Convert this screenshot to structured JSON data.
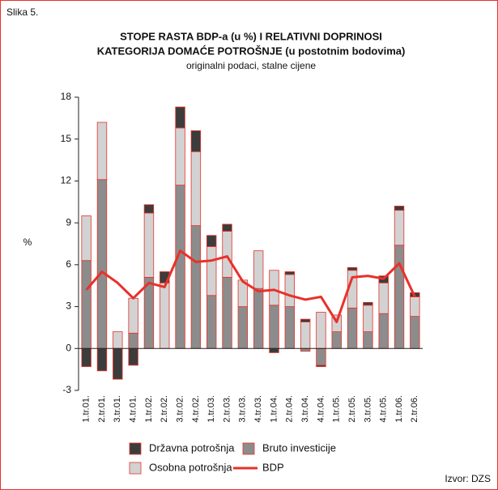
{
  "chart_data": {
    "type": "bar",
    "stacked": true,
    "figure_label": "Slika 5.",
    "title": [
      "STOPE RASTA BDP-a (u %) I RELATIVNI DOPRINOSI",
      "KATEGORIJA DOMAĆE POTROŠNJE (u postotnim bodovima)"
    ],
    "subtitle": "originalni podaci, stalne cijene",
    "ylabel": "%",
    "source": "Izvor: DZS",
    "categories": [
      "1.tr.01.",
      "2.tr.01.",
      "3.tr.01.",
      "4.tr.01.",
      "1.tr.02.",
      "2.tr.02.",
      "3.tr.02.",
      "4.tr.02.",
      "1.tr.03.",
      "2.tr.03.",
      "3.tr.03.",
      "4.tr.03.",
      "1.tr.04.",
      "2.tr.04.",
      "3.tr.04.",
      "4.tr.04.",
      "1.tr.05.",
      "2.tr.05.",
      "3.tr.05.",
      "4.tr.05.",
      "1.tr.06.",
      "2.tr.06."
    ],
    "series": [
      {
        "name": "Bruto investicije",
        "color": "#8c8c8c",
        "values": [
          6.3,
          12.1,
          0,
          1.1,
          5.1,
          0,
          11.7,
          8.8,
          3.8,
          5.1,
          3.0,
          4.3,
          3.1,
          3.0,
          -0.2,
          -1.2,
          1.2,
          2.9,
          1.2,
          2.5,
          7.4,
          2.3
        ]
      },
      {
        "name": "Osobna potrošnja",
        "color": "#d2d2d2",
        "values": [
          3.2,
          4.1,
          1.2,
          2.5,
          4.6,
          4.7,
          4.1,
          5.3,
          3.5,
          3.3,
          1.9,
          2.7,
          2.5,
          2.3,
          1.9,
          2.6,
          1.2,
          2.7,
          1.9,
          2.2,
          2.5,
          1.4
        ]
      },
      {
        "name": "Državna potrošnja",
        "color": "#3c3c3c",
        "values": [
          -1.3,
          -1.6,
          -2.2,
          -1.2,
          0.6,
          0.8,
          1.5,
          1.5,
          0.8,
          0.5,
          0,
          0,
          -0.3,
          0.2,
          0.2,
          -0.1,
          0,
          0.2,
          0.2,
          0.5,
          0.3,
          0.3
        ]
      },
      {
        "name": "BDP",
        "type": "line",
        "color": "#e8312a",
        "values": [
          4.2,
          5.5,
          4.7,
          3.6,
          4.7,
          4.4,
          7.0,
          6.2,
          6.3,
          6.6,
          4.8,
          4.1,
          4.2,
          3.8,
          3.5,
          3.7,
          1.9,
          5.1,
          5.2,
          5.0,
          6.1,
          3.7
        ]
      }
    ],
    "bar_edge_color": "#e8312a",
    "ylim": [
      -3,
      18
    ],
    "yticks": [
      -3,
      0,
      3,
      6,
      9,
      12,
      15,
      18
    ]
  }
}
